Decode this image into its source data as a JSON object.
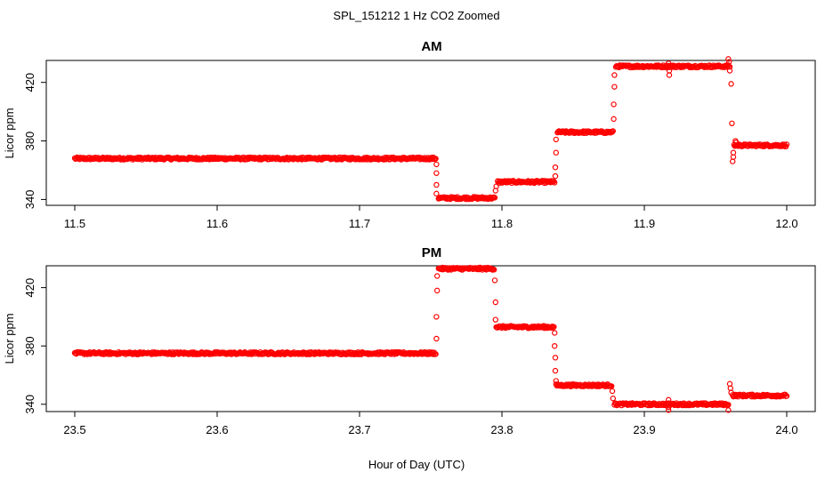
{
  "title": "SPL_151212  1 Hz CO2 Zoomed",
  "xlabel": "Hour of Day (UTC)",
  "point_color": "#ff0000",
  "chart_data": [
    {
      "type": "scatter",
      "title": "AM",
      "ylabel": "Licor ppm",
      "xlim": [
        11.48,
        12.02
      ],
      "ylim": [
        336,
        435
      ],
      "xticks": [
        11.5,
        11.6,
        11.7,
        11.8,
        11.9,
        12.0
      ],
      "xtick_labels": [
        "11.5",
        "11.6",
        "11.7",
        "11.8",
        "11.9",
        "12.0"
      ],
      "yticks": [
        340,
        380,
        420
      ],
      "ytick_labels": [
        "340",
        "380",
        "420"
      ],
      "grid": false,
      "segments": [
        {
          "x": [
            11.5,
            11.7535
          ],
          "y": 368
        },
        {
          "x": [
            11.7555,
            11.795
          ],
          "y": 341
        },
        {
          "x": [
            11.797,
            11.837
          ],
          "y": 352
        },
        {
          "x": [
            11.839,
            11.878
          ],
          "y": 386
        },
        {
          "x": [
            11.88,
            11.96
          ],
          "y": 431
        },
        {
          "x": [
            11.963,
            12.0
          ],
          "y": 377
        }
      ],
      "transition_points": [
        {
          "x": 11.754,
          "y": 364
        },
        {
          "x": 11.754,
          "y": 358
        },
        {
          "x": 11.754,
          "y": 350
        },
        {
          "x": 11.754,
          "y": 344
        },
        {
          "x": 11.7955,
          "y": 346
        },
        {
          "x": 11.796,
          "y": 349
        },
        {
          "x": 11.8375,
          "y": 356
        },
        {
          "x": 11.8375,
          "y": 362
        },
        {
          "x": 11.838,
          "y": 372
        },
        {
          "x": 11.838,
          "y": 381
        },
        {
          "x": 11.8785,
          "y": 395
        },
        {
          "x": 11.8785,
          "y": 405
        },
        {
          "x": 11.879,
          "y": 417
        },
        {
          "x": 11.879,
          "y": 425
        },
        {
          "x": 11.917,
          "y": 433
        },
        {
          "x": 11.9175,
          "y": 425
        },
        {
          "x": 11.9175,
          "y": 428
        },
        {
          "x": 11.959,
          "y": 436
        },
        {
          "x": 11.9595,
          "y": 434
        },
        {
          "x": 11.96,
          "y": 428
        },
        {
          "x": 11.961,
          "y": 419
        },
        {
          "x": 11.9615,
          "y": 392
        },
        {
          "x": 11.962,
          "y": 366
        },
        {
          "x": 11.9625,
          "y": 369
        },
        {
          "x": 11.9625,
          "y": 372
        }
      ],
      "spikes": [
        {
          "x": 11.964,
          "y": 380
        },
        {
          "x": 11.9645,
          "y": 379
        }
      ]
    },
    {
      "type": "scatter",
      "title": "PM",
      "ylabel": "Licor ppm",
      "xlim": [
        23.48,
        24.02
      ],
      "ylim": [
        335,
        435
      ],
      "xticks": [
        23.5,
        23.6,
        23.7,
        23.8,
        23.9,
        24.0
      ],
      "xtick_labels": [
        "23.5",
        "23.6",
        "23.7",
        "23.8",
        "23.9",
        "24.0"
      ],
      "yticks": [
        340,
        380,
        420
      ],
      "ytick_labels": [
        "340",
        "380",
        "420"
      ],
      "grid": false,
      "segments": [
        {
          "x": [
            23.5,
            23.7535
          ],
          "y": 375
        },
        {
          "x": [
            23.7555,
            23.7945
          ],
          "y": 433
        },
        {
          "x": [
            23.796,
            23.8365
          ],
          "y": 393
        },
        {
          "x": [
            23.838,
            23.877
          ],
          "y": 353
        },
        {
          "x": [
            23.879,
            23.959
          ],
          "y": 340
        },
        {
          "x": [
            23.962,
            24.0
          ],
          "y": 346
        }
      ],
      "transition_points": [
        {
          "x": 23.754,
          "y": 385
        },
        {
          "x": 23.754,
          "y": 400
        },
        {
          "x": 23.7545,
          "y": 418
        },
        {
          "x": 23.7545,
          "y": 428
        },
        {
          "x": 23.795,
          "y": 425
        },
        {
          "x": 23.7955,
          "y": 410
        },
        {
          "x": 23.7955,
          "y": 398
        },
        {
          "x": 23.837,
          "y": 389
        },
        {
          "x": 23.837,
          "y": 380
        },
        {
          "x": 23.8375,
          "y": 372
        },
        {
          "x": 23.8375,
          "y": 363
        },
        {
          "x": 23.838,
          "y": 356
        },
        {
          "x": 23.8775,
          "y": 349
        },
        {
          "x": 23.878,
          "y": 344
        },
        {
          "x": 23.917,
          "y": 336
        },
        {
          "x": 23.917,
          "y": 343
        },
        {
          "x": 23.917,
          "y": 338
        },
        {
          "x": 23.959,
          "y": 336
        },
        {
          "x": 23.96,
          "y": 354
        },
        {
          "x": 23.9605,
          "y": 351
        },
        {
          "x": 23.961,
          "y": 348
        }
      ],
      "spikes": []
    }
  ]
}
